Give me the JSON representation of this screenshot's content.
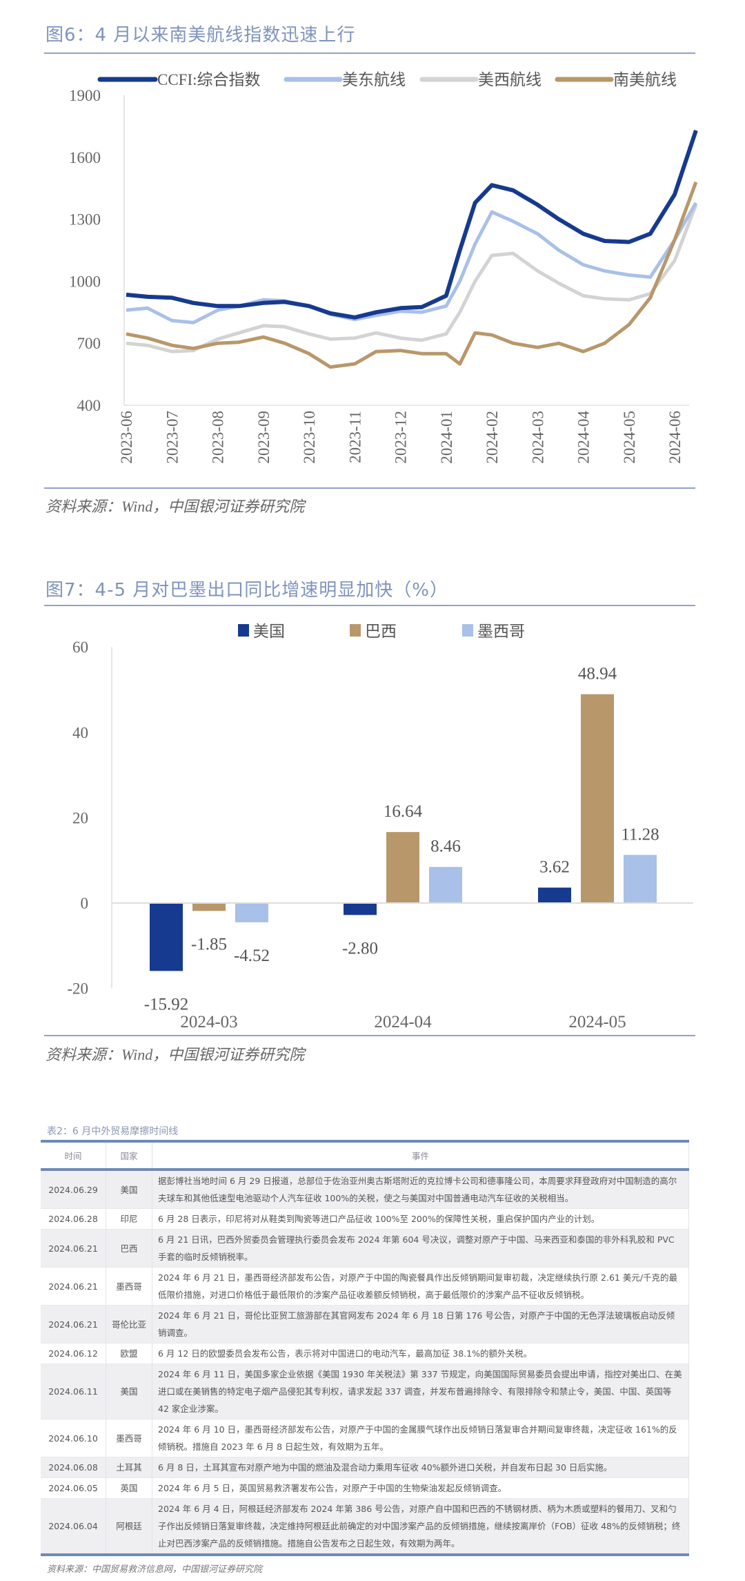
{
  "figure6": {
    "title": "图6：4 月以来南美航线指数迅速上行",
    "source": "资料来源：Wind，中国银河证券研究院",
    "chart_data": {
      "type": "line",
      "title": "图6：4 月以来南美航线指数迅速上行",
      "xlabel": "",
      "ylabel": "",
      "ylim": [
        400,
        1900
      ],
      "yticks": [
        "1900",
        "1600",
        "1300",
        "1000",
        "700",
        "400"
      ],
      "xticks": [
        "2023-06",
        "2023-07",
        "2023-08",
        "2023-09",
        "2023-10",
        "2023-11",
        "2023-12",
        "2024-01",
        "2024-02",
        "2024-03",
        "2024-04",
        "2024-05",
        "2024-06"
      ],
      "grid": false,
      "legend": "top",
      "x": [
        "2023-06-01",
        "2023-06-15",
        "2023-07-01",
        "2023-07-15",
        "2023-08-01",
        "2023-08-15",
        "2023-09-01",
        "2023-09-15",
        "2023-10-01",
        "2023-10-15",
        "2023-11-01",
        "2023-11-15",
        "2023-12-01",
        "2023-12-15",
        "2024-01-01",
        "2024-01-10",
        "2024-01-20",
        "2024-02-01",
        "2024-02-15",
        "2024-03-01",
        "2024-03-15",
        "2024-04-01",
        "2024-04-15",
        "2024-05-01",
        "2024-05-15",
        "2024-06-01",
        "2024-06-15"
      ],
      "series": [
        {
          "name": "CCFI:综合指数",
          "color": "#163a8f",
          "values": [
            935,
            925,
            920,
            895,
            880,
            880,
            895,
            900,
            880,
            845,
            825,
            850,
            870,
            875,
            930,
            1150,
            1380,
            1465,
            1440,
            1370,
            1300,
            1230,
            1195,
            1190,
            1230,
            1420,
            1730
          ]
        },
        {
          "name": "美东航线",
          "color": "#a9c0e8",
          "values": [
            860,
            870,
            810,
            800,
            860,
            880,
            910,
            905,
            880,
            840,
            815,
            835,
            855,
            850,
            880,
            1000,
            1180,
            1335,
            1290,
            1230,
            1150,
            1080,
            1050,
            1030,
            1020,
            1200,
            1380
          ]
        },
        {
          "name": "美西航线",
          "color": "#d3d3d3",
          "values": [
            700,
            690,
            660,
            665,
            720,
            750,
            785,
            780,
            745,
            720,
            725,
            750,
            725,
            715,
            745,
            850,
            1000,
            1125,
            1135,
            1050,
            990,
            930,
            915,
            910,
            940,
            1100,
            1370
          ]
        },
        {
          "name": "南美航线",
          "color": "#b8976a",
          "values": [
            745,
            725,
            690,
            675,
            700,
            705,
            730,
            700,
            650,
            585,
            600,
            660,
            665,
            650,
            650,
            600,
            750,
            740,
            700,
            680,
            700,
            660,
            700,
            790,
            920,
            1200,
            1480
          ]
        }
      ]
    }
  },
  "figure7": {
    "title": "图7：4-5 月对巴墨出口同比增速明显加快（%）",
    "source": "资料来源：Wind，中国银河证券研究院",
    "chart_data": {
      "type": "bar",
      "title": "图7：4-5 月对巴墨出口同比增速明显加快（%）",
      "xlabel": "",
      "ylabel": "",
      "ylim": [
        -20,
        60
      ],
      "yticks": [
        "60",
        "40",
        "20",
        "0",
        "-20"
      ],
      "grid": false,
      "legend": "top",
      "categories": [
        "2024-03",
        "2024-04",
        "2024-05"
      ],
      "series": [
        {
          "name": "美国",
          "color": "#163a8f",
          "values": [
            -15.92,
            -2.8,
            3.62
          ],
          "labels": [
            "-15.92",
            "-2.80",
            "3.62"
          ]
        },
        {
          "name": "巴西",
          "color": "#b8976a",
          "values": [
            -1.85,
            16.64,
            48.94
          ],
          "labels": [
            "-1.85",
            "16.64",
            "48.94"
          ]
        },
        {
          "name": "墨西哥",
          "color": "#a9c0e8",
          "values": [
            -4.52,
            8.46,
            11.28
          ],
          "labels": [
            "-4.52",
            "8.46",
            "11.28"
          ]
        }
      ]
    }
  },
  "table2": {
    "caption": "表2：6 月中外贸易摩擦时间线",
    "headers": [
      "时间",
      "国家",
      "事件"
    ],
    "rows": [
      [
        "2024.06.29",
        "美国",
        "据彭博社当地时间 6 月 29 日报道，总部位于佐治亚州奥古斯塔附近的克拉博卡公司和德事隆公司，本周要求拜登政府对中国制造的高尔夫球车和其他低速型电池驱动个人汽车征收 100%的关税，使之与美国对中国普通电动汽车征收的关税相当。"
      ],
      [
        "2024.06.28",
        "印尼",
        "6 月 28 日表示，印尼将对从鞋类到陶瓷等进口产品征收 100%至 200%的保障性关税，重启保护国内产业的计划。"
      ],
      [
        "2024.06.21",
        "巴西",
        "6 月 21 日讯，巴西外贸委员会管理执行委员会发布 2024 年第 604 号决议，调整对原产于中国、马来西亚和泰国的非外科乳胶和 PVC 手套的临时反倾销税率。"
      ],
      [
        "2024.06.21",
        "墨西哥",
        "2024 年 6 月 21 日，墨西哥经济部发布公告，对原产于中国的陶瓷餐具作出反倾销期间复审初裁，决定继续执行原 2.61 美元/千克的最低限价措施，对进口价格低于最低限价的涉案产品征收差额反倾销税，高于最低限价的涉案产品不征收反倾销税。"
      ],
      [
        "2024.06.21",
        "哥伦比亚",
        "2024 年 6 月 21 日，哥伦比亚贸工旅游部在其官网发布 2024 年 6 月 18 日第 176 号公告，对原产于中国的无色浮法玻璃板启动反倾销调查。"
      ],
      [
        "2024.06.12",
        "欧盟",
        "6 月 12 日的欧盟委员会发布公告，表示将对中国进口的电动汽车，最高加征 38.1%的额外关税。"
      ],
      [
        "2024.06.11",
        "美国",
        "2024 年 6 月 11 日，美国多家企业依据《美国 1930 年关税法》第 337 节规定，向美国国际贸易委员会提出申请，指控对美出口、在美进口或在美销售的特定电子烟产品侵犯其专利权，请求发起 337 调查，并发布普遍排除令、有限排除令和禁止令，美国、中国、英国等 42 家企业涉案。"
      ],
      [
        "2024.06.10",
        "墨西哥",
        "2024 年 6 月 10 日，墨西哥经济部发布公告，对原产于中国的金属膜气球作出反倾销日落复审合并期间复审终裁，决定征收 161%的反倾销税。措施自 2023 年 6 月 8 日起生效，有效期为五年。"
      ],
      [
        "2024.06.08",
        "土耳其",
        "6 月 8 日，土耳其宣布对原产地为中国的燃油及混合动力乘用车征收 40%额外进口关税，并自发布日起 30 日后实施。"
      ],
      [
        "2024.06.05",
        "英国",
        "2024 年 6 月 5 日，英国贸易救济署发布公告，对原产于中国的生物柴油发起反倾销调查。"
      ],
      [
        "2024.06.04",
        "阿根廷",
        "2024 年 6 月 4 日，阿根廷经济部发布 2024 年第 386 号公告，对原产自中国和巴西的不锈钢材质、柄为木质或塑料的餐用刀、叉和勺子作出反倾销日落复审终裁，决定维持阿根廷此前确定的对中国涉案产品的反倾销措施，继续按离岸价（FOB）征收 48%的反倾销税；终止对巴西涉案产品的反倾销措施。措施自公告发布之日起生效，有效期为两年。"
      ]
    ],
    "source": "资料来源：中国贸易救济信息网，中国银河证券研究院"
  }
}
